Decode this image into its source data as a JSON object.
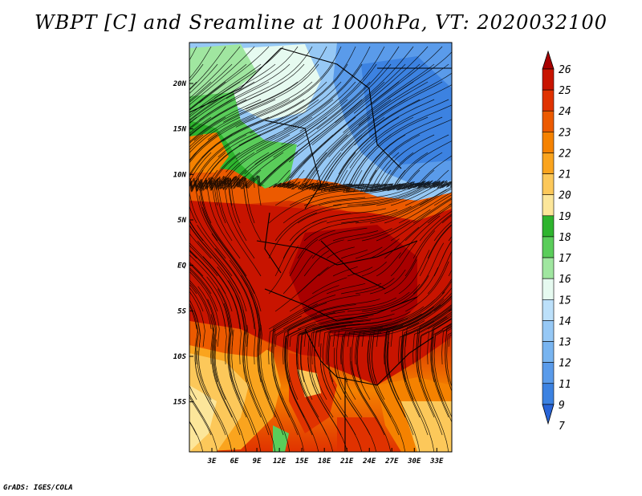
{
  "title": "WBPT [C] and Sreamline at 1000hPa, VT: 2020032100",
  "footer": "GrADS: IGES/COLA",
  "map": {
    "lon_range": [
      0,
      35
    ],
    "lat_range": [
      -20.5,
      24.5
    ],
    "lat_ticks": [
      {
        "value": 20,
        "label": "20N"
      },
      {
        "value": 15,
        "label": "15N"
      },
      {
        "value": 10,
        "label": "10N"
      },
      {
        "value": 5,
        "label": "5N"
      },
      {
        "value": 0,
        "label": "EQ"
      },
      {
        "value": -5,
        "label": "5S"
      },
      {
        "value": -10,
        "label": "10S"
      },
      {
        "value": -15,
        "label": "15S"
      }
    ],
    "lon_ticks": [
      {
        "value": 3,
        "label": "3E"
      },
      {
        "value": 6,
        "label": "6E"
      },
      {
        "value": 9,
        "label": "9E"
      },
      {
        "value": 12,
        "label": "12E"
      },
      {
        "value": 15,
        "label": "15E"
      },
      {
        "value": 18,
        "label": "18E"
      },
      {
        "value": 21,
        "label": "21E"
      },
      {
        "value": 24,
        "label": "24E"
      },
      {
        "value": 27,
        "label": "27E"
      },
      {
        "value": 30,
        "label": "30E"
      },
      {
        "value": 33,
        "label": "33E"
      }
    ]
  },
  "colorbar": {
    "labels": [
      "26",
      "25",
      "24",
      "23",
      "22",
      "21",
      "20",
      "19",
      "18",
      "17",
      "16",
      "15",
      "14",
      "13",
      "12",
      "11",
      "9",
      "7"
    ],
    "colors": [
      "#a80000",
      "#c81400",
      "#e03200",
      "#ec5a00",
      "#f58200",
      "#faa41e",
      "#fcc85a",
      "#fce69a",
      "#2eb42e",
      "#5acd5a",
      "#a0e6a0",
      "#e6faf0",
      "#bce0fa",
      "#96c8f5",
      "#78b4f0",
      "#5a9bea",
      "#3c82e1",
      "#2864d7"
    ]
  }
}
